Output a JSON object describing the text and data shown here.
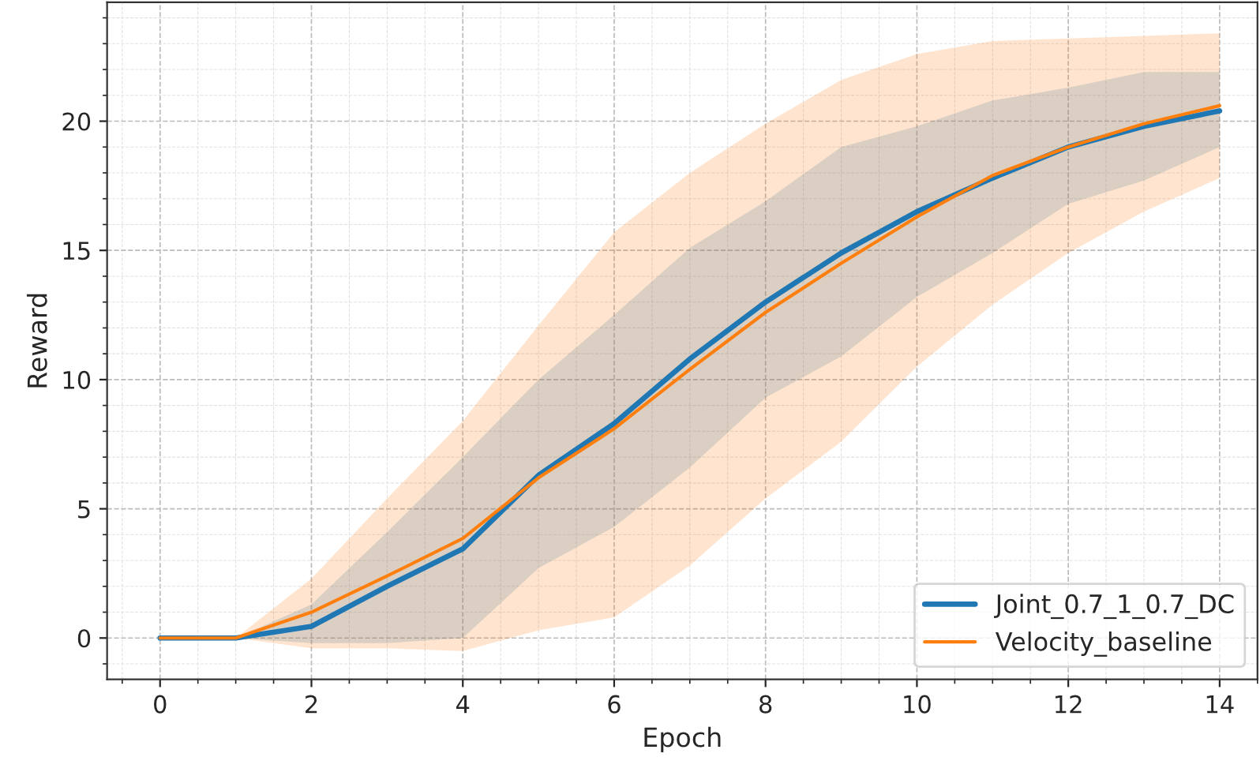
{
  "chart_data": {
    "type": "line",
    "xlabel": "Epoch",
    "ylabel": "Reward",
    "x": [
      0,
      1,
      2,
      3,
      4,
      5,
      6,
      7,
      8,
      9,
      10,
      11,
      12,
      13,
      14
    ],
    "xlim": [
      -0.7,
      14.5
    ],
    "ylim": [
      -1.6,
      24.6
    ],
    "xticks": [
      0,
      2,
      4,
      6,
      8,
      10,
      12,
      14
    ],
    "yticks": [
      0,
      5,
      10,
      15,
      20
    ],
    "grid": true,
    "legend": "bottom right",
    "line_style": "solid",
    "marker": "none",
    "series": [
      {
        "name": "Joint_0.7_1_0.7_DC",
        "color": "#1f77b4",
        "values": [
          0,
          0,
          0.45,
          2.0,
          3.45,
          6.3,
          8.3,
          10.8,
          13.0,
          14.9,
          16.5,
          17.8,
          19.0,
          19.8,
          20.4
        ],
        "lower": [
          0,
          0,
          -0.2,
          -0.2,
          0,
          2.7,
          4.3,
          6.6,
          9.3,
          10.9,
          13.2,
          14.9,
          16.8,
          17.7,
          19.0
        ],
        "upper": [
          0,
          0,
          1.3,
          4.1,
          7.0,
          10.0,
          12.5,
          15.1,
          16.9,
          19.0,
          19.8,
          20.8,
          21.3,
          21.9,
          21.9
        ]
      },
      {
        "name": "Velocity_baseline",
        "color": "#ff7f0e",
        "values": [
          0,
          0,
          1.0,
          2.4,
          3.85,
          6.2,
          8.1,
          10.4,
          12.6,
          14.5,
          16.3,
          17.9,
          19.0,
          19.9,
          20.6
        ],
        "lower": [
          0,
          0,
          -0.4,
          -0.4,
          -0.5,
          0.3,
          0.8,
          2.8,
          5.4,
          7.6,
          10.5,
          12.9,
          14.9,
          16.5,
          17.8
        ],
        "upper": [
          0,
          0,
          2.3,
          5.4,
          8.4,
          12.1,
          15.7,
          18.0,
          19.9,
          21.6,
          22.6,
          23.1,
          23.2,
          23.3,
          23.4
        ]
      }
    ]
  }
}
